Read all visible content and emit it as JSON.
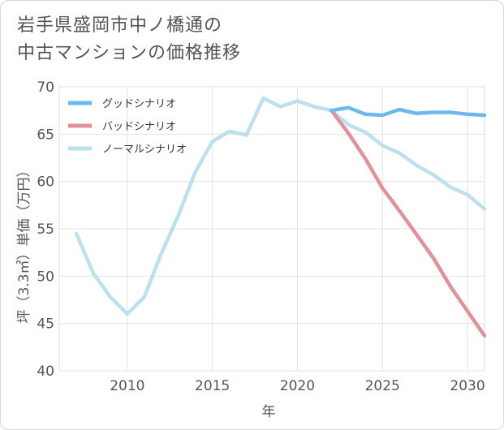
{
  "title_lines": [
    "岩手県盛岡市中ノ橋通の",
    "中古マンションの価格推移"
  ],
  "chart_data": {
    "type": "line",
    "xlabel": "年",
    "ylabel": "坪（3.3㎡）単価（万円）",
    "xlim": [
      2006,
      2031
    ],
    "ylim": [
      40,
      70
    ],
    "x_ticks": [
      2010,
      2015,
      2020,
      2025,
      2030
    ],
    "y_ticks": [
      40,
      45,
      50,
      55,
      60,
      65,
      70
    ],
    "grid": true,
    "legend_position": "top-left",
    "series": [
      {
        "name": "グッドシナリオ",
        "color": "#6bb8ee",
        "x": [
          2022,
          2023,
          2024,
          2025,
          2026,
          2027,
          2028,
          2029,
          2030,
          2031
        ],
        "y": [
          67.5,
          67.8,
          67.1,
          67.0,
          67.6,
          67.2,
          67.3,
          67.3,
          67.1,
          67.0
        ]
      },
      {
        "name": "バッドシナリオ",
        "color": "#e0919a",
        "x": [
          2022,
          2023,
          2024,
          2025,
          2026,
          2027,
          2028,
          2029,
          2030,
          2031
        ],
        "y": [
          67.5,
          65.1,
          62.4,
          59.3,
          56.9,
          54.4,
          51.9,
          48.9,
          46.3,
          43.7
        ]
      },
      {
        "name": "ノーマルシナリオ",
        "color": "#bde0ee",
        "x": [
          2007,
          2008,
          2009,
          2010,
          2011,
          2012,
          2013,
          2014,
          2015,
          2016,
          2017,
          2018,
          2019,
          2020,
          2021,
          2022,
          2023,
          2024,
          2025,
          2026,
          2027,
          2028,
          2029,
          2030,
          2031
        ],
        "y": [
          54.5,
          50.3,
          47.8,
          46.0,
          47.8,
          52.4,
          56.4,
          61.0,
          64.2,
          65.3,
          64.9,
          68.8,
          67.9,
          68.5,
          67.9,
          67.5,
          66.0,
          65.2,
          63.8,
          63.0,
          61.7,
          60.7,
          59.4,
          58.6,
          57.1
        ]
      }
    ]
  }
}
